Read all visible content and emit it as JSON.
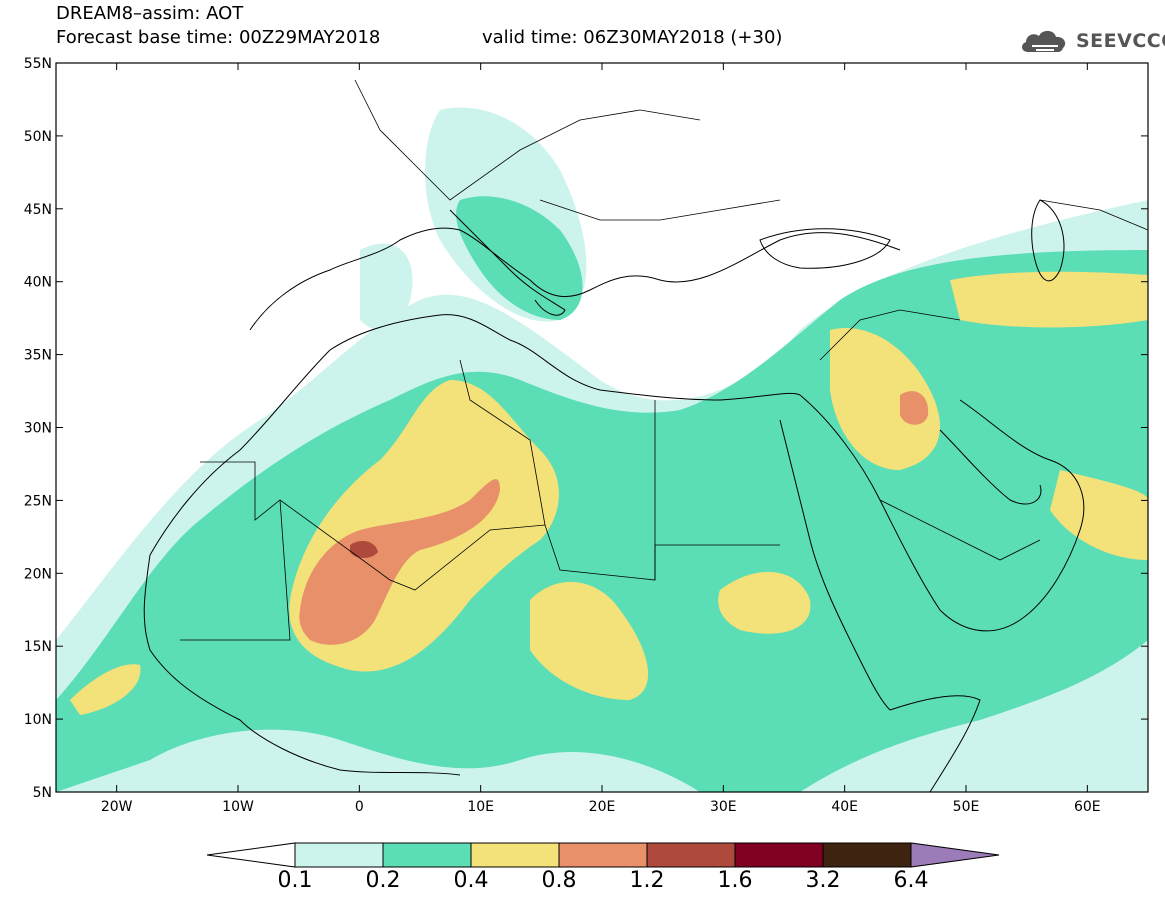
{
  "header": {
    "line1": "DREAM8–assim: AOT",
    "line2": "Forecast base time: 00Z29MAY2018",
    "line3": "valid time: 06Z30MAY2018 (+30)",
    "logo": "SEEVCCC"
  },
  "map": {
    "lon_range": [
      -25,
      65
    ],
    "lat_range": [
      5,
      55
    ],
    "lat_ticks": [
      "5N",
      "10N",
      "15N",
      "20N",
      "25N",
      "30N",
      "35N",
      "40N",
      "45N",
      "50N",
      "55N"
    ],
    "lon_ticks": [
      "20W",
      "10W",
      "0",
      "10E",
      "20E",
      "30E",
      "40E",
      "50E",
      "60E"
    ],
    "field": "AOT"
  },
  "colorbar": {
    "labels": [
      "0.1",
      "0.2",
      "0.4",
      "0.8",
      "1.2",
      "1.6",
      "3.2",
      "6.4"
    ],
    "colors": [
      "#ccf4ec",
      "#5bddb5",
      "#f3e27a",
      "#e8906a",
      "#ae4a3c",
      "#800022",
      "#3e2310",
      "#9b7bb8"
    ]
  }
}
